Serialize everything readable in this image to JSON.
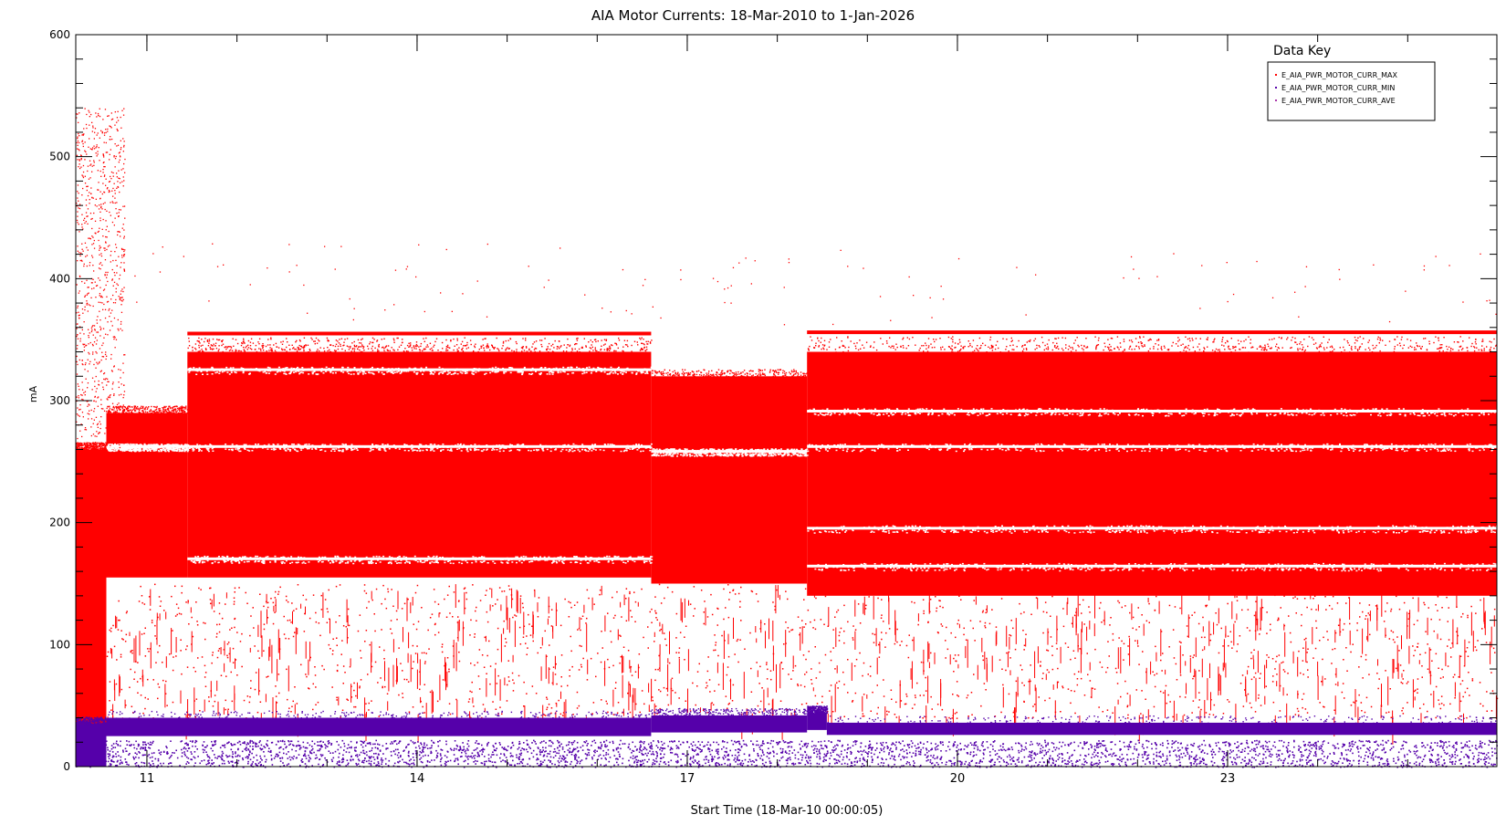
{
  "chart_data": {
    "type": "scatter",
    "title": "AIA Motor Currents: 18-Mar-2010 to 1-Jan-2026",
    "xlabel": "Start Time (18-Mar-10 00:00:05)",
    "ylabel": "mA",
    "xlim": [
      2010.21,
      2025.99
    ],
    "ylim": [
      0,
      600
    ],
    "x_ticks": [
      {
        "value": 2011,
        "label": "11"
      },
      {
        "value": 2014,
        "label": "14"
      },
      {
        "value": 2017,
        "label": "17"
      },
      {
        "value": 2020,
        "label": "20"
      },
      {
        "value": 2023,
        "label": "23"
      }
    ],
    "y_ticks": [
      {
        "value": 0,
        "label": "0"
      },
      {
        "value": 100,
        "label": "100"
      },
      {
        "value": 200,
        "label": "200"
      },
      {
        "value": 300,
        "label": "300"
      },
      {
        "value": 400,
        "label": "400"
      },
      {
        "value": 500,
        "label": "500"
      },
      {
        "value": 600,
        "label": "600"
      }
    ],
    "legend": {
      "title": "Data Key",
      "position": "top-right",
      "entries": [
        {
          "label": "E_AIA_PWR_MOTOR_CURR_MAX",
          "color": "#ff0000"
        },
        {
          "label": "E_AIA_PWR_MOTOR_CURR_MIN",
          "color": "#5500aa"
        },
        {
          "label": "E_AIA_PWR_MOTOR_CURR_AVE",
          "color": "#aa33aa"
        }
      ]
    },
    "series": [
      {
        "name": "E_AIA_PWR_MOTOR_CURR_MAX",
        "color": "#ff0000",
        "dense_bands": [
          {
            "x0": 2010.21,
            "x1": 2010.55,
            "y0": 30,
            "y1": 260
          },
          {
            "x0": 2010.55,
            "x1": 2011.45,
            "y0": 155,
            "y1": 290
          },
          {
            "x0": 2011.45,
            "x1": 2016.6,
            "y0": 155,
            "y1": 340
          },
          {
            "x0": 2016.6,
            "x1": 2018.33,
            "y0": 150,
            "y1": 320
          },
          {
            "x0": 2018.33,
            "x1": 2025.99,
            "y0": 140,
            "y1": 340
          }
        ],
        "upper_lines": [
          {
            "x0": 2011.45,
            "x1": 2016.6,
            "y": 355
          },
          {
            "x0": 2018.33,
            "x1": 2025.99,
            "y": 356
          }
        ],
        "gaps": [
          {
            "x0": 2010.55,
            "x1": 2011.45,
            "y": 262
          },
          {
            "x0": 2011.45,
            "x1": 2016.6,
            "y": 262
          },
          {
            "x0": 2016.6,
            "x1": 2018.33,
            "y": 258
          },
          {
            "x0": 2018.33,
            "x1": 2025.99,
            "y": 262
          },
          {
            "x0": 2011.45,
            "x1": 2016.6,
            "y": 170
          },
          {
            "x0": 2018.33,
            "x1": 2025.99,
            "y": 164
          },
          {
            "x0": 2018.33,
            "x1": 2025.99,
            "y": 195
          },
          {
            "x0": 2018.33,
            "x1": 2025.99,
            "y": 291
          },
          {
            "x0": 2011.45,
            "x1": 2016.6,
            "y": 325
          }
        ],
        "sparse_region": {
          "x0": 2010.55,
          "x1": 2025.99,
          "y0": 40,
          "y1": 150
        },
        "early_outliers": {
          "x0": 2010.21,
          "x1": 2010.75,
          "y0": 250,
          "y1": 540
        }
      },
      {
        "name": "E_AIA_PWR_MOTOR_CURR_MIN",
        "color": "#5500aa",
        "dense_bands": [
          {
            "x0": 2010.21,
            "x1": 2010.55,
            "y0": 0,
            "y1": 35
          },
          {
            "x0": 2010.55,
            "x1": 2016.6,
            "y0": 25,
            "y1": 40
          },
          {
            "x0": 2016.6,
            "x1": 2018.33,
            "y0": 28,
            "y1": 42
          },
          {
            "x0": 2018.33,
            "x1": 2018.55,
            "y0": 30,
            "y1": 44
          },
          {
            "x0": 2018.55,
            "x1": 2025.99,
            "y0": 26,
            "y1": 36
          }
        ],
        "lower_band": {
          "x0": 2010.21,
          "x1": 2025.99,
          "y0": 0,
          "y1": 22
        }
      },
      {
        "name": "E_AIA_PWR_MOTOR_CURR_AVE",
        "color": "#aa33aa",
        "dense_bands": []
      }
    ]
  }
}
